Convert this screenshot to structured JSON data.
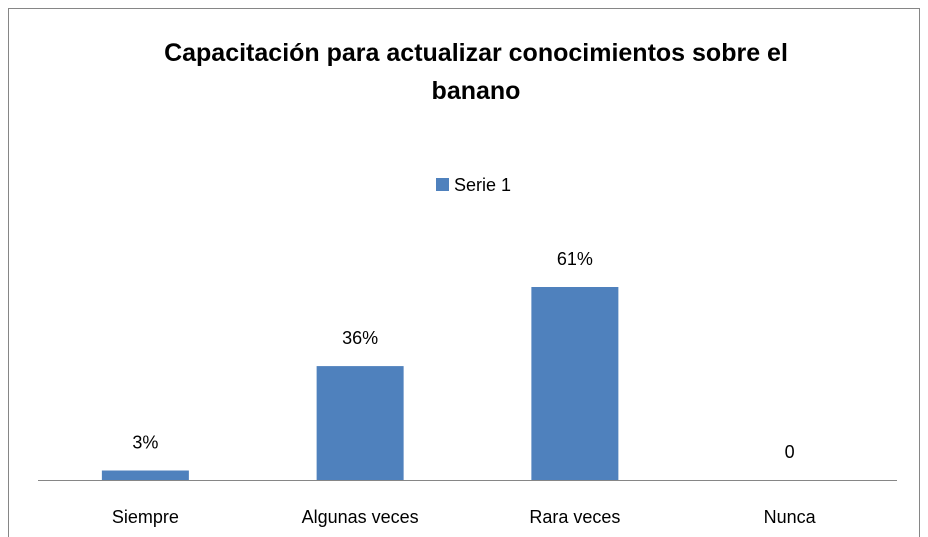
{
  "chart_data": {
    "type": "bar",
    "title": "Capacitación para actualizar conocimientos sobre el banano",
    "categories": [
      "Siempre",
      "Algunas veces",
      "Rara veces",
      "Nunca"
    ],
    "series": [
      {
        "name": "Serie 1",
        "color": "#4f81bd",
        "values": [
          3,
          36,
          61,
          0
        ],
        "value_labels": [
          "3%",
          "36%",
          "61%",
          "0"
        ]
      }
    ]
  }
}
